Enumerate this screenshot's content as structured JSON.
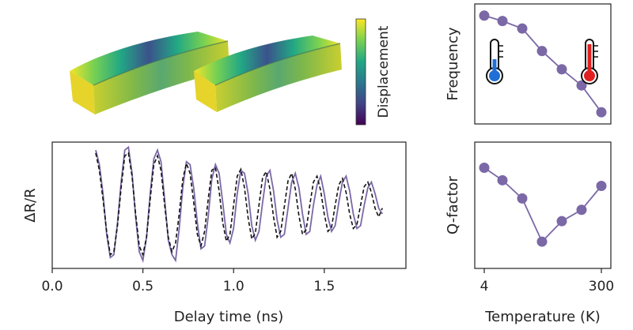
{
  "colorbar": {
    "label": "Displacement",
    "colors": [
      "#fde725",
      "#7ad151",
      "#22a884",
      "#2a788e",
      "#414487",
      "#440154"
    ]
  },
  "chart_data": [
    {
      "type": "line",
      "id": "delta-r",
      "ylabel": "ΔR/R",
      "xlabel": "Delay time (ns)",
      "xlim": [
        0.0,
        1.95
      ],
      "xticks": [
        "0.0",
        "0.5",
        "1.0",
        "1.5"
      ],
      "xtick_values": [
        0.0,
        0.5,
        1.0,
        1.5
      ],
      "series": [
        {
          "style": "solid",
          "color": "#7b68a6",
          "x": [
            0.24,
            0.26,
            0.28,
            0.3,
            0.32,
            0.34,
            0.36,
            0.38,
            0.4,
            0.42,
            0.44,
            0.46,
            0.48,
            0.5,
            0.52,
            0.54,
            0.56,
            0.58,
            0.6,
            0.62,
            0.64,
            0.66,
            0.68,
            0.7,
            0.72,
            0.74,
            0.76,
            0.78,
            0.8,
            0.82,
            0.84,
            0.86,
            0.88,
            0.9,
            0.92,
            0.94,
            0.96,
            0.98,
            1.0,
            1.02,
            1.04,
            1.06,
            1.08,
            1.1,
            1.12,
            1.14,
            1.16,
            1.18,
            1.2,
            1.22,
            1.24,
            1.26,
            1.28,
            1.3,
            1.32,
            1.34,
            1.36,
            1.38,
            1.4,
            1.42,
            1.44,
            1.46,
            1.48,
            1.5,
            1.52,
            1.54,
            1.56,
            1.58,
            1.6,
            1.62,
            1.64,
            1.66,
            1.68,
            1.7,
            1.72,
            1.74,
            1.76,
            1.78,
            1.8,
            1.82
          ],
          "y": [
            0.95,
            0.7,
            0.2,
            -0.5,
            -0.9,
            -0.85,
            -0.3,
            0.4,
            0.95,
            1.0,
            0.55,
            -0.2,
            -0.8,
            -0.95,
            -0.55,
            0.2,
            0.8,
            0.95,
            0.75,
            0.1,
            -0.6,
            -0.85,
            -0.95,
            -0.4,
            0.3,
            0.75,
            0.7,
            0.3,
            -0.3,
            -0.75,
            -0.7,
            -0.2,
            0.45,
            0.7,
            0.55,
            0.05,
            -0.5,
            -0.65,
            -0.4,
            0.2,
            0.6,
            0.55,
            0.2,
            -0.35,
            -0.6,
            -0.45,
            0.05,
            0.5,
            0.6,
            0.25,
            -0.25,
            -0.55,
            -0.5,
            -0.05,
            0.4,
            0.55,
            0.3,
            -0.15,
            -0.5,
            -0.45,
            0.0,
            0.35,
            0.5,
            0.2,
            -0.2,
            -0.45,
            -0.35,
            0.05,
            0.4,
            0.5,
            0.25,
            -0.15,
            -0.4,
            -0.35,
            0.0,
            0.3,
            0.4,
            0.2,
            -0.05,
            -0.15
          ]
        },
        {
          "style": "dashed",
          "color": "#111111",
          "x": [
            0.24,
            0.26,
            0.28,
            0.3,
            0.32,
            0.34,
            0.36,
            0.38,
            0.4,
            0.42,
            0.44,
            0.46,
            0.48,
            0.5,
            0.52,
            0.54,
            0.56,
            0.58,
            0.6,
            0.62,
            0.64,
            0.66,
            0.68,
            0.7,
            0.72,
            0.74,
            0.76,
            0.78,
            0.8,
            0.82,
            0.84,
            0.86,
            0.88,
            0.9,
            0.92,
            0.94,
            0.96,
            0.98,
            1.0,
            1.02,
            1.04,
            1.06,
            1.08,
            1.1,
            1.12,
            1.14,
            1.16,
            1.18,
            1.2,
            1.22,
            1.24,
            1.26,
            1.28,
            1.3,
            1.32,
            1.34,
            1.36,
            1.38,
            1.4,
            1.42,
            1.44,
            1.46,
            1.48,
            1.5,
            1.52,
            1.54,
            1.56,
            1.58,
            1.6,
            1.62,
            1.64,
            1.66,
            1.68,
            1.7,
            1.72,
            1.74,
            1.76,
            1.78,
            1.8,
            1.82
          ],
          "y": [
            0.9,
            0.6,
            0.1,
            -0.45,
            -0.85,
            -0.8,
            -0.35,
            0.3,
            0.85,
            0.9,
            0.5,
            -0.15,
            -0.7,
            -0.85,
            -0.55,
            0.1,
            0.7,
            0.85,
            0.6,
            0.0,
            -0.55,
            -0.8,
            -0.65,
            -0.15,
            0.45,
            0.72,
            0.55,
            0.05,
            -0.5,
            -0.7,
            -0.45,
            0.1,
            0.6,
            0.65,
            0.25,
            -0.3,
            -0.62,
            -0.5,
            0.0,
            0.5,
            0.62,
            0.3,
            -0.22,
            -0.58,
            -0.48,
            0.0,
            0.48,
            0.58,
            0.28,
            -0.2,
            -0.55,
            -0.45,
            -0.02,
            0.42,
            0.55,
            0.28,
            -0.18,
            -0.5,
            -0.42,
            0.0,
            0.4,
            0.5,
            0.25,
            -0.15,
            -0.45,
            -0.38,
            0.0,
            0.35,
            0.46,
            0.22,
            -0.15,
            -0.4,
            -0.33,
            0.0,
            0.32,
            0.4,
            0.22,
            -0.05,
            -0.2,
            -0.05
          ]
        }
      ]
    },
    {
      "type": "line",
      "id": "frequency",
      "ylabel": "Frequency",
      "xlim": [
        4,
        300
      ],
      "ylim": [
        0,
        10
      ],
      "series": [
        {
          "color": "#7b68a6",
          "x": [
            4,
            50,
            100,
            150,
            200,
            250,
            300
          ],
          "y": [
            9.5,
            9.0,
            8.3,
            6.2,
            4.5,
            3.0,
            0.5
          ]
        }
      ],
      "icons": [
        "cold-thermometer-icon",
        "hot-thermometer-icon"
      ],
      "icon_colors": [
        "#1f6fd6",
        "#e02020"
      ]
    },
    {
      "type": "line",
      "id": "q-factor",
      "ylabel": "Q-factor",
      "xlabel": "Temperature (K)",
      "xlim": [
        4,
        300
      ],
      "ylim": [
        0,
        10
      ],
      "xticks": [
        "4",
        "300"
      ],
      "xtick_values": [
        4,
        300
      ],
      "series": [
        {
          "color": "#7b68a6",
          "x": [
            4,
            50,
            100,
            150,
            200,
            250,
            300
          ],
          "y": [
            8.3,
            7.2,
            5.6,
            1.8,
            3.6,
            4.6,
            6.7
          ]
        }
      ]
    }
  ]
}
